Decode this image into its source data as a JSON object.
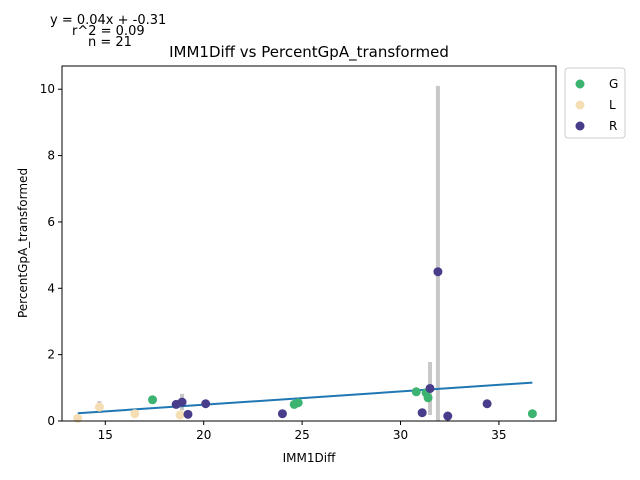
{
  "annotations": {
    "equation": "y = 0.04x + -0.31",
    "r2": "r^2 = 0.09",
    "n": "n = 21"
  },
  "chart_data": {
    "type": "scatter",
    "title": "IMM1Diff vs PercentGpA_transformed",
    "xlabel": "IMM1Diff",
    "ylabel": "PercentGpA_transformed",
    "xlim": [
      12.8,
      37.9
    ],
    "ylim": [
      0,
      10.7
    ],
    "xticks": [
      15,
      20,
      25,
      30,
      35
    ],
    "yticks": [
      0,
      2,
      4,
      6,
      8,
      10
    ],
    "grid": false,
    "legend_position": "outside-right-top",
    "series": [
      {
        "name": "G",
        "color": "#3cb371",
        "points": [
          [
            17.4,
            0.64
          ],
          [
            24.6,
            0.5
          ],
          [
            24.8,
            0.55
          ],
          [
            30.8,
            0.88
          ],
          [
            31.3,
            0.85
          ],
          [
            31.4,
            0.7
          ],
          [
            36.7,
            0.22
          ]
        ]
      },
      {
        "name": "L",
        "color": "#f5deb3",
        "points": [
          [
            13.6,
            0.08
          ],
          [
            14.7,
            0.42
          ],
          [
            16.5,
            0.22
          ],
          [
            18.8,
            0.18
          ]
        ]
      },
      {
        "name": "R",
        "color": "#483d8b",
        "points": [
          [
            18.6,
            0.5
          ],
          [
            18.9,
            0.57
          ],
          [
            19.2,
            0.2
          ],
          [
            20.1,
            0.52
          ],
          [
            24.0,
            0.22
          ],
          [
            31.1,
            0.25
          ],
          [
            31.5,
            0.98
          ],
          [
            31.9,
            4.5
          ],
          [
            32.4,
            0.15
          ],
          [
            34.4,
            0.52
          ]
        ]
      }
    ],
    "error_bars": [
      {
        "x": 14.7,
        "y": 0.42,
        "err": 0.18
      },
      {
        "x": 18.9,
        "y": 0.57,
        "err": 0.25
      },
      {
        "x": 20.1,
        "y": 0.52,
        "err": 0.1
      },
      {
        "x": 31.5,
        "y": 0.98,
        "err": 0.8
      },
      {
        "x": 31.9,
        "y": 4.5,
        "err": 5.6
      }
    ],
    "error_color": "#c8c8c8",
    "trendline": {
      "slope": 0.04,
      "intercept": -0.31,
      "x_start": 13.6,
      "x_end": 36.7,
      "color": "#1f77b4"
    }
  }
}
